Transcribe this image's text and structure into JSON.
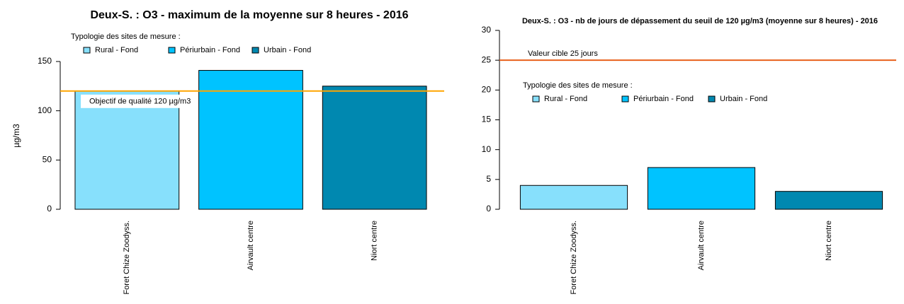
{
  "chart_data": [
    {
      "type": "bar",
      "title": "Deux-S. : O3 - maximum de la moyenne sur 8 heures - 2016",
      "ylabel": "µg/m3",
      "categories": [
        "Foret Chize Zoodyss.",
        "Airvault centre",
        "Niort centre"
      ],
      "values": [
        120,
        141,
        125
      ],
      "colors": [
        "#87e0fc",
        "#00c3ff",
        "#0088b0"
      ],
      "ylim": [
        0,
        150
      ],
      "yticks": [
        0,
        50,
        100,
        150
      ],
      "legend": {
        "title": "Typologie des sites de mesure :",
        "entries": [
          {
            "name": "Rural - Fond",
            "color": "#87e0fc"
          },
          {
            "name": "Périurbain - Fond",
            "color": "#00c3ff"
          },
          {
            "name": "Urbain - Fond",
            "color": "#0088b0"
          }
        ]
      },
      "reference_line": {
        "value": 120,
        "label": "Objectif de qualité 120 µg/m3",
        "color": "#ffa500"
      }
    },
    {
      "type": "bar",
      "title": "Deux-S. : O3 - nb de jours de dépassement du seuil de 120 µg/m3 (moyenne sur 8 heures) - 2016",
      "categories": [
        "Foret Chize Zoodyss.",
        "Airvault centre",
        "Niort centre"
      ],
      "values": [
        4,
        7,
        3
      ],
      "colors": [
        "#87e0fc",
        "#00c3ff",
        "#0088b0"
      ],
      "ylim": [
        0,
        30
      ],
      "yticks": [
        0,
        5,
        10,
        15,
        20,
        25,
        30
      ],
      "legend": {
        "title": "Typologie des sites de mesure :",
        "entries": [
          {
            "name": "Rural - Fond",
            "color": "#87e0fc"
          },
          {
            "name": "Périurbain - Fond",
            "color": "#00c3ff"
          },
          {
            "name": "Urbain - Fond",
            "color": "#0088b0"
          }
        ]
      },
      "reference_line": {
        "value": 25,
        "label": "Valeur cible 25 jours",
        "color": "#e8601c"
      }
    }
  ]
}
